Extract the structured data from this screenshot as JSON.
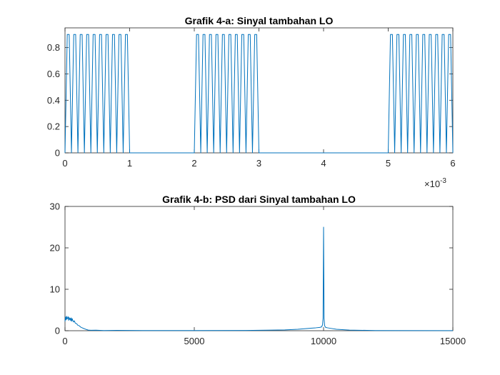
{
  "colors": {
    "series": "#0072BD",
    "axis": "#262626",
    "background": "#ffffff"
  },
  "chart_data": [
    {
      "type": "line",
      "title": "Grafik 4-a: Sinyal tambahan LO",
      "xlim": [
        0,
        0.006
      ],
      "ylim": [
        0,
        0.95
      ],
      "xticks": [
        0,
        0.001,
        0.002,
        0.003,
        0.004,
        0.005,
        0.006
      ],
      "xtick_labels": [
        "0",
        "1",
        "2",
        "3",
        "4",
        "5",
        "6"
      ],
      "yticks": [
        0,
        0.2,
        0.4,
        0.6,
        0.8
      ],
      "ytick_labels": [
        "0",
        "0.2",
        "0.4",
        "0.6",
        "0.8"
      ],
      "x_exponent": {
        "base": "×10",
        "power": "-3"
      },
      "grid": false,
      "series": [
        {
          "pulse_peak": 0.9,
          "pulses_per_burst": 10,
          "bursts": [
            [
              0,
              0.001
            ],
            [
              0.002,
              0.003
            ],
            [
              0.005,
              0.006
            ]
          ]
        }
      ]
    },
    {
      "type": "line",
      "title": "Grafik 4-b: PSD dari Sinyal tambahan LO",
      "xlim": [
        0,
        15000
      ],
      "ylim": [
        0,
        30
      ],
      "xticks": [
        0,
        5000,
        10000,
        15000
      ],
      "xtick_labels": [
        "0",
        "5000",
        "10000",
        "15000"
      ],
      "yticks": [
        0,
        10,
        20,
        30
      ],
      "ytick_labels": [
        "0",
        "10",
        "20",
        "30"
      ],
      "grid": false,
      "series": [
        {
          "x": [
            0,
            20,
            40,
            60,
            80,
            100,
            120,
            140,
            160,
            180,
            200,
            220,
            240,
            260,
            280,
            300,
            330,
            360,
            400,
            450,
            500,
            550,
            600,
            700,
            800,
            900,
            1000,
            1200,
            1500,
            2000,
            3000,
            5000,
            7000,
            8500,
            9000,
            9500,
            9700,
            9850,
            9920,
            9960,
            9980,
            10000,
            10020,
            10040,
            10080,
            10150,
            10300,
            10500,
            11000,
            12000,
            15000
          ],
          "y": [
            2.2,
            3.3,
            2.6,
            3.5,
            2.8,
            3.1,
            3.4,
            2.5,
            3.2,
            2.7,
            3.0,
            2.4,
            3.1,
            2.3,
            2.9,
            2.5,
            2.1,
            2.4,
            1.8,
            1.7,
            1.3,
            1.2,
            0.9,
            0.6,
            0.35,
            0.15,
            0.1,
            0.12,
            0.05,
            0.08,
            0.05,
            0.05,
            0.07,
            0.2,
            0.35,
            0.6,
            0.7,
            0.8,
            0.9,
            1.4,
            3.0,
            25,
            3.0,
            1.2,
            0.8,
            0.7,
            0.55,
            0.35,
            0.15,
            0.05,
            0.02
          ]
        }
      ]
    }
  ]
}
